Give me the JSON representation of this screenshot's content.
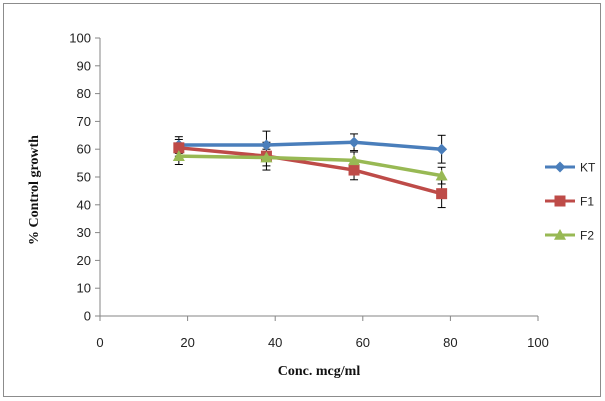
{
  "chart_data": {
    "type": "line",
    "title": "",
    "xlabel": "Conc. mcg/ml",
    "ylabel": "% Control growth",
    "xlim": [
      0,
      100
    ],
    "ylim": [
      0,
      100
    ],
    "x_ticks": [
      0,
      20,
      40,
      60,
      80,
      100
    ],
    "y_ticks": [
      0,
      10,
      20,
      30,
      40,
      50,
      60,
      70,
      80,
      90,
      100
    ],
    "grid": false,
    "legend_position": "right",
    "x": [
      18,
      38,
      58,
      78
    ],
    "series": [
      {
        "name": "KT",
        "color": "#4a7ebb",
        "marker": "diamond",
        "values": [
          61.5,
          61.5,
          62.5,
          60
        ],
        "errors": [
          3,
          5,
          3,
          5
        ]
      },
      {
        "name": "F1",
        "color": "#be4b48",
        "marker": "square",
        "values": [
          60.5,
          57.5,
          52.5,
          44
        ],
        "errors": [
          3,
          5,
          3.5,
          5
        ]
      },
      {
        "name": "F2",
        "color": "#98b954",
        "marker": "triangle",
        "values": [
          57.5,
          57,
          56,
          50.5
        ],
        "errors": [
          3,
          3,
          3,
          3
        ]
      }
    ]
  }
}
